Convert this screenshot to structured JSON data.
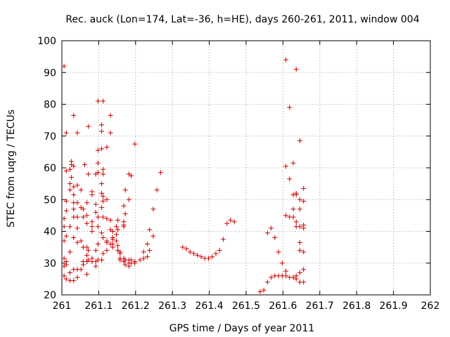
{
  "chart_data": {
    "type": "scatter",
    "title": "Rec. auck (Lon=174, Lat=-36, h=HE), days 260-261, 2011, window 004",
    "xlabel": "GPS time / Days of year 2011",
    "ylabel": "STEC from uqrg / TECUs",
    "xlim": [
      261,
      262
    ],
    "ylim": [
      20,
      100
    ],
    "xticks": [
      261,
      261.1,
      261.2,
      261.3,
      261.4,
      261.5,
      261.6,
      261.7,
      261.8,
      261.9,
      262
    ],
    "xtick_labels": [
      "261",
      "261.1",
      "261.2",
      "261.3",
      "261.4",
      "261.5",
      "261.6",
      "261.7",
      "261.8",
      "261.9",
      "262"
    ],
    "yticks": [
      20,
      30,
      40,
      50,
      60,
      70,
      80,
      90,
      100
    ],
    "ytick_labels": [
      "20",
      "30",
      "40",
      "50",
      "60",
      "70",
      "80",
      "90",
      "100"
    ],
    "grid": true,
    "marker": "+",
    "color": "#cc0000",
    "series": [
      {
        "points": [
          [
            261.006,
            92.0
          ],
          [
            261.006,
            44.0
          ],
          [
            261.006,
            41.5
          ],
          [
            261.006,
            37.0
          ],
          [
            261.006,
            31.5
          ],
          [
            261.006,
            29.0
          ],
          [
            261.006,
            26.0
          ],
          [
            261.012,
            71.0
          ],
          [
            261.012,
            59.0
          ],
          [
            261.012,
            49.5
          ],
          [
            261.012,
            46.5
          ],
          [
            261.012,
            38.5
          ],
          [
            261.012,
            30.5
          ],
          [
            261.012,
            29.5
          ],
          [
            261.012,
            25.0
          ],
          [
            261.022,
            59.5
          ],
          [
            261.022,
            55.0
          ],
          [
            261.022,
            53.0
          ],
          [
            261.022,
            41.5
          ],
          [
            261.022,
            33.5
          ],
          [
            261.022,
            27.0
          ],
          [
            261.022,
            24.5
          ],
          [
            261.026,
            62.0
          ],
          [
            261.026,
            61.0
          ],
          [
            261.026,
            57.0
          ],
          [
            261.032,
            76.5
          ],
          [
            261.032,
            60.5
          ],
          [
            261.032,
            54.0
          ],
          [
            261.032,
            51.5
          ],
          [
            261.032,
            49.0
          ],
          [
            261.032,
            47.0
          ],
          [
            261.032,
            44.5
          ],
          [
            261.032,
            38.0
          ],
          [
            261.032,
            28.0
          ],
          [
            261.032,
            24.5
          ],
          [
            261.042,
            71.0
          ],
          [
            261.042,
            54.5
          ],
          [
            261.042,
            49.0
          ],
          [
            261.042,
            44.5
          ],
          [
            261.042,
            41.0
          ],
          [
            261.042,
            36.5
          ],
          [
            261.042,
            28.0
          ],
          [
            261.042,
            25.5
          ],
          [
            261.052,
            53.0
          ],
          [
            261.052,
            47.5
          ],
          [
            261.052,
            37.0
          ],
          [
            261.052,
            28.0
          ],
          [
            261.058,
            47.0
          ],
          [
            261.058,
            44.5
          ],
          [
            261.058,
            35.0
          ],
          [
            261.058,
            30.5
          ],
          [
            261.058,
            29.5
          ],
          [
            261.062,
            61.0
          ],
          [
            261.068,
            49.0
          ],
          [
            261.068,
            45.0
          ],
          [
            261.068,
            42.5
          ],
          [
            261.068,
            35.0
          ],
          [
            261.068,
            32.5
          ],
          [
            261.068,
            30.5
          ],
          [
            261.068,
            26.5
          ],
          [
            261.072,
            73.0
          ],
          [
            261.072,
            58.0
          ],
          [
            261.072,
            34.0
          ],
          [
            261.072,
            31.0
          ],
          [
            261.082,
            52.5
          ],
          [
            261.082,
            51.5
          ],
          [
            261.082,
            43.0
          ],
          [
            261.082,
            41.5
          ],
          [
            261.082,
            40.0
          ],
          [
            261.082,
            31.5
          ],
          [
            261.082,
            30.5
          ],
          [
            261.092,
            58.0
          ],
          [
            261.092,
            48.5
          ],
          [
            261.092,
            46.0
          ],
          [
            261.092,
            34.0
          ],
          [
            261.092,
            30.5
          ],
          [
            261.092,
            29.0
          ],
          [
            261.098,
            81.0
          ],
          [
            261.098,
            65.5
          ],
          [
            261.098,
            61.5
          ],
          [
            261.098,
            58.5
          ],
          [
            261.098,
            44.5
          ],
          [
            261.098,
            41.5
          ],
          [
            261.098,
            36.0
          ],
          [
            261.098,
            31.0
          ],
          [
            261.108,
            73.5
          ],
          [
            261.108,
            71.5
          ],
          [
            261.108,
            66.0
          ],
          [
            261.108,
            55.0
          ],
          [
            261.108,
            52.0
          ],
          [
            261.108,
            47.5
          ],
          [
            261.108,
            39.5
          ],
          [
            261.108,
            31.0
          ],
          [
            261.112,
            81.0
          ],
          [
            261.112,
            59.5
          ],
          [
            261.112,
            58.0
          ],
          [
            261.112,
            51.0
          ],
          [
            261.112,
            49.5
          ],
          [
            261.112,
            44.5
          ],
          [
            261.112,
            38.0
          ],
          [
            261.112,
            33.0
          ],
          [
            261.122,
            66.5
          ],
          [
            261.122,
            50.0
          ],
          [
            261.122,
            44.0
          ],
          [
            261.122,
            37.0
          ],
          [
            261.122,
            36.5
          ],
          [
            261.122,
            34.0
          ],
          [
            261.132,
            76.5
          ],
          [
            261.132,
            71.0
          ],
          [
            261.132,
            43.5
          ],
          [
            261.132,
            40.5
          ],
          [
            261.132,
            36.0
          ],
          [
            261.138,
            40.0
          ],
          [
            261.138,
            38.0
          ],
          [
            261.138,
            37.5
          ],
          [
            261.138,
            36.0
          ],
          [
            261.138,
            35.0
          ],
          [
            261.148,
            41.5
          ],
          [
            261.148,
            39.0
          ],
          [
            261.148,
            37.0
          ],
          [
            261.152,
            43.5
          ],
          [
            261.152,
            40.5
          ],
          [
            261.152,
            35.5
          ],
          [
            261.152,
            34.0
          ],
          [
            261.158,
            33.5
          ],
          [
            261.158,
            33.0
          ],
          [
            261.158,
            31.5
          ],
          [
            261.158,
            31.0
          ],
          [
            261.168,
            48.0
          ],
          [
            261.168,
            43.0
          ],
          [
            261.168,
            42.0
          ],
          [
            261.168,
            41.5
          ],
          [
            261.168,
            31.5
          ],
          [
            261.168,
            30.5
          ],
          [
            261.172,
            53.0
          ],
          [
            261.172,
            45.5
          ],
          [
            261.172,
            31.0
          ],
          [
            261.172,
            29.5
          ],
          [
            261.182,
            58.0
          ],
          [
            261.182,
            50.0
          ],
          [
            261.182,
            31.0
          ],
          [
            261.182,
            30.0
          ],
          [
            261.182,
            29.0
          ],
          [
            261.188,
            57.5
          ],
          [
            261.188,
            31.0
          ],
          [
            261.188,
            30.0
          ],
          [
            261.198,
            67.5
          ],
          [
            261.198,
            30.5
          ],
          [
            261.198,
            30.0
          ],
          [
            261.212,
            31.0
          ],
          [
            261.222,
            33.5
          ],
          [
            261.222,
            31.5
          ],
          [
            261.232,
            36.0
          ],
          [
            261.232,
            32.0
          ],
          [
            261.238,
            40.5
          ],
          [
            261.238,
            34.0
          ],
          [
            261.248,
            47.0
          ],
          [
            261.248,
            38.5
          ],
          [
            261.258,
            53.0
          ],
          [
            261.268,
            58.5
          ],
          [
            261.328,
            35.0
          ],
          [
            261.338,
            34.5
          ],
          [
            261.348,
            33.5
          ],
          [
            261.358,
            33.0
          ],
          [
            261.368,
            32.5
          ],
          [
            261.378,
            32.0
          ],
          [
            261.388,
            31.5
          ],
          [
            261.398,
            31.5
          ],
          [
            261.408,
            32.0
          ],
          [
            261.418,
            33.0
          ],
          [
            261.428,
            34.0
          ],
          [
            261.438,
            37.5
          ],
          [
            261.448,
            42.5
          ],
          [
            261.458,
            43.5
          ],
          [
            261.468,
            43.0
          ],
          [
            261.538,
            21.0
          ],
          [
            261.548,
            21.5
          ],
          [
            261.558,
            24.0
          ],
          [
            261.558,
            39.5
          ],
          [
            261.568,
            25.5
          ],
          [
            261.568,
            41.0
          ],
          [
            261.578,
            26.0
          ],
          [
            261.578,
            38.0
          ],
          [
            261.588,
            26.0
          ],
          [
            261.588,
            33.5
          ],
          [
            261.598,
            26.0
          ],
          [
            261.598,
            30.0
          ],
          [
            261.608,
            94.0
          ],
          [
            261.608,
            60.5
          ],
          [
            261.608,
            45.0
          ],
          [
            261.608,
            27.5
          ],
          [
            261.608,
            26.0
          ],
          [
            261.618,
            79.0
          ],
          [
            261.618,
            56.5
          ],
          [
            261.618,
            44.5
          ],
          [
            261.618,
            25.5
          ],
          [
            261.628,
            61.5
          ],
          [
            261.628,
            51.5
          ],
          [
            261.628,
            47.0
          ],
          [
            261.628,
            44.5
          ],
          [
            261.628,
            25.5
          ],
          [
            261.636,
            91.0
          ],
          [
            261.636,
            52.0
          ],
          [
            261.636,
            51.5
          ],
          [
            261.636,
            43.0
          ],
          [
            261.636,
            41.5
          ],
          [
            261.636,
            26.0
          ],
          [
            261.636,
            25.0
          ],
          [
            261.646,
            68.5
          ],
          [
            261.646,
            50.0
          ],
          [
            261.646,
            47.0
          ],
          [
            261.646,
            41.5
          ],
          [
            261.646,
            36.5
          ],
          [
            261.646,
            34.0
          ],
          [
            261.646,
            27.0
          ],
          [
            261.646,
            24.0
          ],
          [
            261.656,
            53.5
          ],
          [
            261.656,
            49.5
          ],
          [
            261.656,
            42.0
          ],
          [
            261.656,
            41.0
          ],
          [
            261.656,
            33.5
          ],
          [
            261.656,
            28.0
          ],
          [
            261.656,
            24.0
          ]
        ]
      }
    ]
  }
}
